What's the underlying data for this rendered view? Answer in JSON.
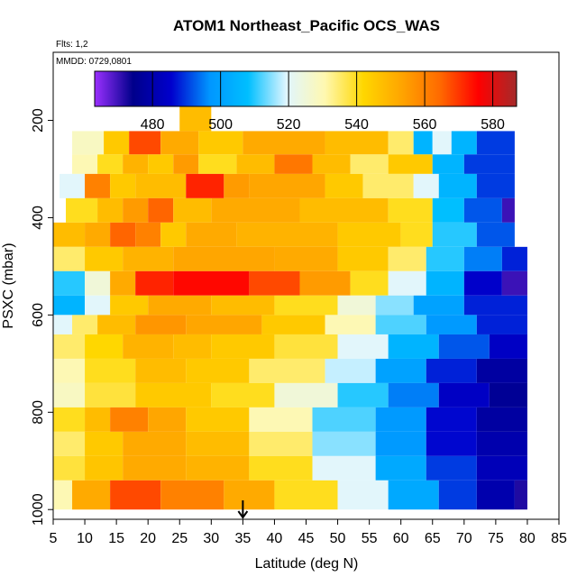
{
  "chart_data": {
    "type": "heatmap",
    "title": "ATOM1 Northeast_Pacific OCS_WAS",
    "flights_label": "Flts: 1,2",
    "dates_label": "MMDD: 0729,0801",
    "xlabel": "Latitude (deg N)",
    "ylabel": "PSXC (mbar)",
    "xlim": [
      5,
      85
    ],
    "ylim": [
      1020,
      60
    ],
    "x_ticks": [
      5,
      10,
      15,
      20,
      25,
      30,
      35,
      40,
      45,
      50,
      55,
      60,
      65,
      70,
      75,
      80,
      85
    ],
    "y_ticks": [
      200,
      400,
      600,
      800,
      1000
    ],
    "colorbar": {
      "min": 463,
      "max": 587,
      "ticks": [
        480,
        500,
        520,
        540,
        560,
        580
      ],
      "colors": [
        "#9b30ff",
        "#00008b",
        "#0000cd",
        "#0096ff",
        "#00bfff",
        "#e0f6ff",
        "#fff8b0",
        "#ffd700",
        "#ffa500",
        "#ff6a00",
        "#ff0000",
        "#a52a2a"
      ]
    },
    "marker": {
      "x": 35,
      "label": "arrow"
    },
    "bands": [
      {
        "p1": 160,
        "p2": 222,
        "segs": [
          [
            25,
            30,
            548
          ]
        ]
      },
      {
        "p1": 222,
        "p2": 270,
        "segs": [
          [
            8,
            13,
            528
          ],
          [
            13,
            17,
            545
          ],
          [
            17,
            22,
            568
          ],
          [
            22,
            28,
            552
          ],
          [
            28,
            35,
            545
          ],
          [
            35,
            48,
            552
          ],
          [
            48,
            58,
            548
          ],
          [
            58,
            62,
            535
          ],
          [
            62,
            65,
            505
          ],
          [
            65,
            68,
            520
          ],
          [
            68,
            72,
            505
          ],
          [
            72,
            78,
            490
          ]
        ]
      },
      {
        "p1": 270,
        "p2": 310,
        "segs": [
          [
            8,
            12,
            530
          ],
          [
            12,
            16,
            540
          ],
          [
            16,
            20,
            550
          ],
          [
            20,
            24,
            545
          ],
          [
            24,
            28,
            555
          ],
          [
            28,
            34,
            540
          ],
          [
            34,
            40,
            548
          ],
          [
            40,
            46,
            562
          ],
          [
            46,
            52,
            548
          ],
          [
            52,
            58,
            535
          ],
          [
            58,
            65,
            545
          ],
          [
            65,
            70,
            505
          ],
          [
            70,
            78,
            490
          ]
        ]
      },
      {
        "p1": 310,
        "p2": 360,
        "segs": [
          [
            6,
            10,
            520
          ],
          [
            10,
            14,
            560
          ],
          [
            14,
            18,
            545
          ],
          [
            18,
            26,
            548
          ],
          [
            26,
            32,
            572
          ],
          [
            32,
            36,
            555
          ],
          [
            36,
            48,
            553
          ],
          [
            48,
            54,
            545
          ],
          [
            54,
            62,
            535
          ],
          [
            62,
            66,
            520
          ],
          [
            66,
            72,
            505
          ],
          [
            72,
            78,
            490
          ]
        ]
      },
      {
        "p1": 360,
        "p2": 410,
        "segs": [
          [
            7,
            12,
            540
          ],
          [
            12,
            16,
            548
          ],
          [
            16,
            20,
            555
          ],
          [
            20,
            24,
            565
          ],
          [
            24,
            30,
            548
          ],
          [
            30,
            44,
            552
          ],
          [
            44,
            58,
            548
          ],
          [
            58,
            65,
            540
          ],
          [
            65,
            70,
            508
          ],
          [
            70,
            76,
            492
          ],
          [
            76,
            78,
            470
          ]
        ]
      },
      {
        "p1": 410,
        "p2": 460,
        "segs": [
          [
            5,
            10,
            548
          ],
          [
            10,
            14,
            552
          ],
          [
            14,
            18,
            565
          ],
          [
            18,
            22,
            560
          ],
          [
            22,
            26,
            545
          ],
          [
            26,
            34,
            552
          ],
          [
            34,
            50,
            550
          ],
          [
            50,
            60,
            545
          ],
          [
            60,
            65,
            540
          ],
          [
            65,
            72,
            510
          ],
          [
            72,
            78,
            492
          ]
        ]
      },
      {
        "p1": 460,
        "p2": 510,
        "segs": [
          [
            5,
            10,
            535
          ],
          [
            10,
            16,
            545
          ],
          [
            16,
            24,
            550
          ],
          [
            24,
            40,
            553
          ],
          [
            40,
            50,
            552
          ],
          [
            50,
            58,
            545
          ],
          [
            58,
            64,
            535
          ],
          [
            64,
            70,
            510
          ],
          [
            70,
            76,
            495
          ],
          [
            76,
            80,
            488
          ]
        ]
      },
      {
        "p1": 510,
        "p2": 560,
        "segs": [
          [
            5,
            10,
            510
          ],
          [
            10,
            14,
            525
          ],
          [
            14,
            18,
            552
          ],
          [
            18,
            24,
            572
          ],
          [
            24,
            36,
            575
          ],
          [
            36,
            44,
            568
          ],
          [
            44,
            52,
            555
          ],
          [
            52,
            58,
            540
          ],
          [
            58,
            64,
            520
          ],
          [
            64,
            70,
            505
          ],
          [
            70,
            76,
            485
          ],
          [
            76,
            80,
            470
          ]
        ]
      },
      {
        "p1": 560,
        "p2": 600,
        "segs": [
          [
            5,
            10,
            505
          ],
          [
            10,
            14,
            520
          ],
          [
            14,
            20,
            545
          ],
          [
            20,
            30,
            552
          ],
          [
            30,
            40,
            548
          ],
          [
            40,
            50,
            540
          ],
          [
            50,
            56,
            525
          ],
          [
            56,
            62,
            515
          ],
          [
            62,
            70,
            500
          ],
          [
            70,
            80,
            488
          ]
        ]
      },
      {
        "p1": 600,
        "p2": 640,
        "segs": [
          [
            5,
            8,
            520
          ],
          [
            8,
            12,
            535
          ],
          [
            12,
            18,
            548
          ],
          [
            18,
            26,
            556
          ],
          [
            26,
            38,
            553
          ],
          [
            38,
            48,
            545
          ],
          [
            48,
            56,
            530
          ],
          [
            56,
            64,
            512
          ],
          [
            64,
            72,
            498
          ],
          [
            72,
            80,
            488
          ]
        ]
      },
      {
        "p1": 640,
        "p2": 690,
        "segs": [
          [
            5,
            10,
            535
          ],
          [
            10,
            16,
            542
          ],
          [
            16,
            24,
            550
          ],
          [
            24,
            30,
            548
          ],
          [
            30,
            40,
            545
          ],
          [
            40,
            50,
            538
          ],
          [
            50,
            58,
            520
          ],
          [
            58,
            66,
            505
          ],
          [
            66,
            74,
            492
          ],
          [
            74,
            80,
            484
          ]
        ]
      },
      {
        "p1": 690,
        "p2": 740,
        "segs": [
          [
            5,
            10,
            530
          ],
          [
            10,
            18,
            540
          ],
          [
            18,
            26,
            548
          ],
          [
            26,
            36,
            545
          ],
          [
            36,
            48,
            535
          ],
          [
            48,
            56,
            518
          ],
          [
            56,
            64,
            500
          ],
          [
            64,
            72,
            488
          ],
          [
            72,
            80,
            478
          ]
        ]
      },
      {
        "p1": 740,
        "p2": 790,
        "segs": [
          [
            5,
            10,
            528
          ],
          [
            10,
            18,
            538
          ],
          [
            18,
            30,
            545
          ],
          [
            30,
            40,
            540
          ],
          [
            40,
            50,
            525
          ],
          [
            50,
            58,
            510
          ],
          [
            58,
            66,
            495
          ],
          [
            66,
            74,
            484
          ],
          [
            74,
            80,
            476
          ]
        ]
      },
      {
        "p1": 790,
        "p2": 840,
        "segs": [
          [
            5,
            10,
            540
          ],
          [
            10,
            14,
            548
          ],
          [
            14,
            20,
            560
          ],
          [
            20,
            26,
            553
          ],
          [
            26,
            36,
            545
          ],
          [
            36,
            46,
            530
          ],
          [
            46,
            56,
            512
          ],
          [
            56,
            64,
            498
          ],
          [
            64,
            72,
            486
          ],
          [
            72,
            80,
            478
          ]
        ]
      },
      {
        "p1": 840,
        "p2": 890,
        "segs": [
          [
            5,
            10,
            535
          ],
          [
            10,
            16,
            545
          ],
          [
            16,
            26,
            552
          ],
          [
            26,
            36,
            548
          ],
          [
            36,
            46,
            535
          ],
          [
            46,
            56,
            515
          ],
          [
            56,
            64,
            498
          ],
          [
            64,
            72,
            486
          ],
          [
            72,
            80,
            480
          ]
        ]
      },
      {
        "p1": 890,
        "p2": 940,
        "segs": [
          [
            5,
            10,
            538
          ],
          [
            10,
            16,
            546
          ],
          [
            16,
            26,
            552
          ],
          [
            26,
            36,
            550
          ],
          [
            36,
            46,
            540
          ],
          [
            46,
            56,
            520
          ],
          [
            56,
            64,
            502
          ],
          [
            64,
            72,
            490
          ],
          [
            72,
            80,
            482
          ]
        ]
      },
      {
        "p1": 940,
        "p2": 1000,
        "segs": [
          [
            5,
            8,
            530
          ],
          [
            8,
            14,
            552
          ],
          [
            14,
            22,
            568
          ],
          [
            22,
            32,
            560
          ],
          [
            32,
            40,
            552
          ],
          [
            40,
            50,
            540
          ],
          [
            50,
            58,
            520
          ],
          [
            58,
            66,
            502
          ],
          [
            66,
            72,
            490
          ],
          [
            72,
            78,
            480
          ],
          [
            78,
            80,
            472
          ]
        ]
      }
    ]
  }
}
